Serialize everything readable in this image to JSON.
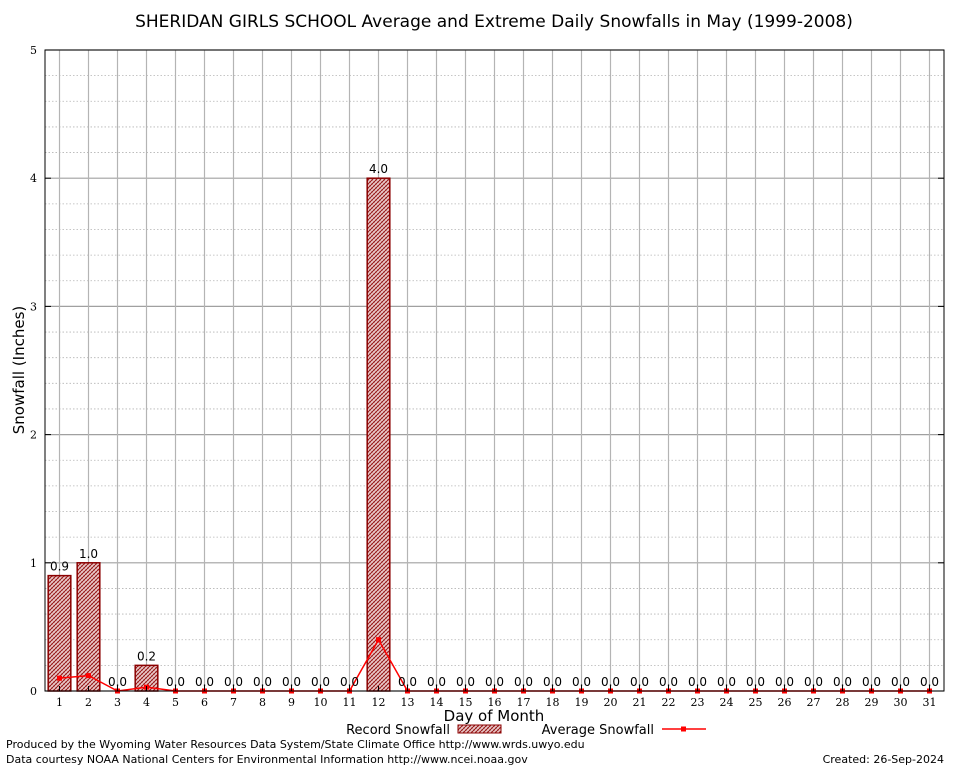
{
  "chart_data": {
    "type": "bar",
    "title": "SHERIDAN GIRLS SCHOOL Average and Extreme Daily Snowfalls in May (1999-2008)",
    "xlabel": "Day of Month",
    "ylabel": "Snowfall (Inches)",
    "ylim": [
      0,
      5
    ],
    "yticks": [
      0,
      1,
      2,
      3,
      4,
      5
    ],
    "categories": [
      "1",
      "2",
      "3",
      "4",
      "5",
      "6",
      "7",
      "8",
      "9",
      "10",
      "11",
      "12",
      "13",
      "14",
      "15",
      "16",
      "17",
      "18",
      "19",
      "20",
      "21",
      "22",
      "23",
      "24",
      "25",
      "26",
      "27",
      "28",
      "29",
      "30",
      "31"
    ],
    "series": [
      {
        "name": "Record Snowfall",
        "kind": "bar",
        "values": [
          0.9,
          1.0,
          0.0,
          0.2,
          0.0,
          0.0,
          0.0,
          0.0,
          0.0,
          0.0,
          0.0,
          4.0,
          0.0,
          0.0,
          0.0,
          0.0,
          0.0,
          0.0,
          0.0,
          0.0,
          0.0,
          0.0,
          0.0,
          0.0,
          0.0,
          0.0,
          0.0,
          0.0,
          0.0,
          0.0,
          0.0
        ],
        "labels": [
          "0.9",
          "1.0",
          "0.0",
          "0.2",
          "0.0",
          "0.0",
          "0.0",
          "0.0",
          "0.0",
          "0.0",
          "0.0",
          "4.0",
          "0.0",
          "0.0",
          "0.0",
          "0.0",
          "0.0",
          "0.0",
          "0.0",
          "0.0",
          "0.0",
          "0.0",
          "0.0",
          "0.0",
          "0.0",
          "0.0",
          "0.0",
          "0.0",
          "0.0",
          "0.0",
          "0.0"
        ],
        "color": "#8b0000"
      },
      {
        "name": "Average Snowfall",
        "kind": "line",
        "values": [
          0.1,
          0.12,
          0.0,
          0.03,
          0.0,
          0.0,
          0.0,
          0.0,
          0.0,
          0.0,
          0.0,
          0.4,
          0.0,
          0.0,
          0.0,
          0.0,
          0.0,
          0.0,
          0.0,
          0.0,
          0.0,
          0.0,
          0.0,
          0.0,
          0.0,
          0.0,
          0.0,
          0.0,
          0.0,
          0.0,
          0.0
        ],
        "color": "#ff0000"
      }
    ],
    "grid": true,
    "legend": "bottom"
  },
  "footer": {
    "produced_by": "Produced by the Wyoming Water Resources Data System/State Climate Office http://www.wrds.uwyo.edu",
    "courtesy": "Data courtesy NOAA National Centers for Environmental Information http://www.ncei.noaa.gov",
    "created": "Created: 26-Sep-2024"
  }
}
